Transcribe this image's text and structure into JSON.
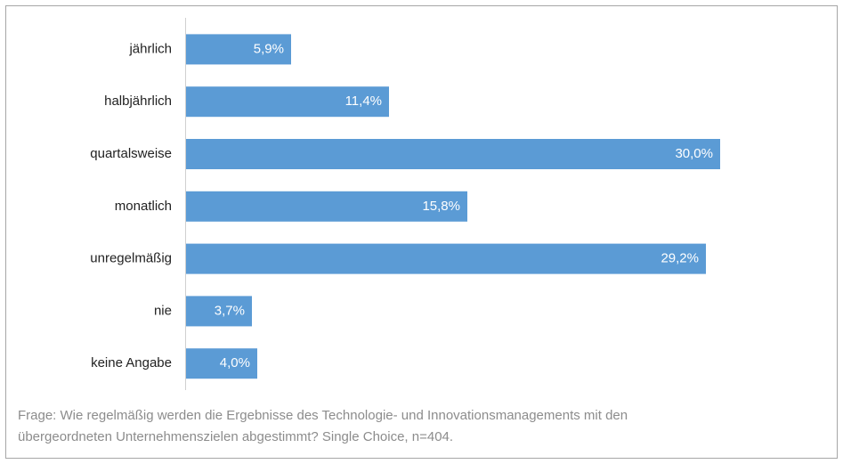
{
  "chart_data": {
    "type": "bar",
    "orientation": "horizontal",
    "categories": [
      "jährlich",
      "halbjährlich",
      "quartalsweise",
      "monatlich",
      "unregelmäßig",
      "nie",
      "keine Angabe"
    ],
    "values": [
      5.9,
      11.4,
      30.0,
      15.8,
      29.2,
      3.7,
      4.0
    ],
    "value_labels": [
      "5,9%",
      "11,4%",
      "30,0%",
      "15,8%",
      "29,2%",
      "3,7%",
      "4,0%"
    ],
    "color": "#5b9bd5",
    "note": [
      "Frage: Wie regelmäßig werden die Ergebnisse des Technologie- und Innovationsmanagements mit den",
      "übergeordneten Unternehmenszielen abgestimmt? Single Choice, n=404."
    ]
  }
}
